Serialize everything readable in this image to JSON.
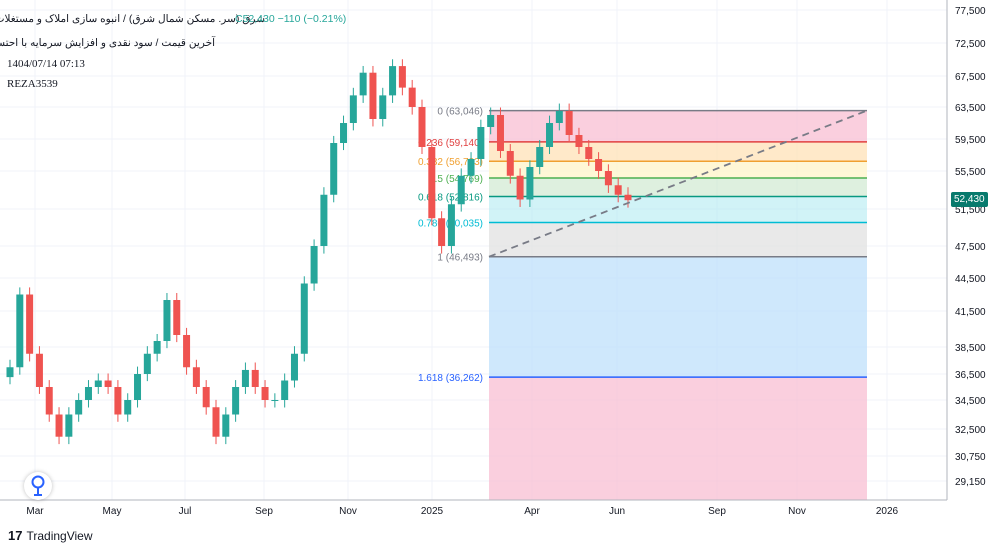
{
  "header": {
    "title": "شرق (سر. مسکن شمال شرق) / انبوه سازی املاک و مستغلات",
    "ohlc": "C52,430  −110 (−0.21%)",
    "subtitle": "آخرین قیمت / سود نقدی و افزایش سرمایه با احتساب آورده /",
    "datetime": "1404/07/14 07:13",
    "user": "REZA3539"
  },
  "footer": {
    "logo_mark": "17",
    "logo_text": "TradingView"
  },
  "colors": {
    "up": "#26a69a",
    "down": "#ef5350",
    "grid": "#f0f3fa",
    "text": "#131722"
  },
  "icons": {
    "drop": "map-pin-icon",
    "logo": "tradingview-logo"
  },
  "chart_data": {
    "type": "candlestick",
    "last_price": "52,430",
    "y_ticks": [
      "77,500",
      "72,500",
      "67,500",
      "63,500",
      "59,500",
      "55,500",
      "51,500",
      "47,500",
      "44,500",
      "41,500",
      "38,500",
      "36,500",
      "34,500",
      "32,500",
      "30,750",
      "29,150"
    ],
    "x_ticks": [
      "Mar",
      "May",
      "Jul",
      "Sep",
      "Nov",
      "2025",
      "Apr",
      "Jun",
      "Sep",
      "Nov",
      "2026"
    ],
    "fib_levels": [
      {
        "label": "0 (63,046)",
        "value": 63046,
        "color": "#787b86"
      },
      {
        "label": "0.236 (59,140)",
        "value": 59140,
        "color": "#e04040"
      },
      {
        "label": "0.382 (56,723)",
        "value": 56723,
        "color": "#f0a030"
      },
      {
        "label": "0.5 (54,769)",
        "value": 54769,
        "color": "#4caf50"
      },
      {
        "label": "0.618 (52,816)",
        "value": 52816,
        "color": "#089981"
      },
      {
        "label": "0.786 (50,035)",
        "value": 50035,
        "color": "#00bcd4"
      },
      {
        "label": "1 (46,493)",
        "value": 46493,
        "color": "#787b86"
      },
      {
        "label": "1.618 (36,262)",
        "value": 36262,
        "color": "#2962ff"
      }
    ],
    "trend_line": {
      "from": 46493,
      "to": 63046
    },
    "close_series": [
      37000,
      43000,
      38000,
      35500,
      33500,
      32000,
      33500,
      34500,
      35500,
      36000,
      35500,
      33500,
      34500,
      36500,
      38000,
      39000,
      42500,
      39500,
      37000,
      35500,
      34000,
      32000,
      33500,
      35500,
      36800,
      35500,
      34500,
      34500,
      36000,
      38000,
      44000,
      47500,
      53000,
      59000,
      61500,
      65000,
      68000,
      62000,
      65000,
      69000,
      66000,
      63500,
      58500,
      50500,
      47500,
      52000,
      55000,
      57000,
      61000,
      62500,
      58000,
      55000,
      52500,
      56000,
      58500,
      61500,
      63000,
      60000,
      58500,
      57000,
      55500,
      54000,
      53000,
      52430
    ]
  }
}
